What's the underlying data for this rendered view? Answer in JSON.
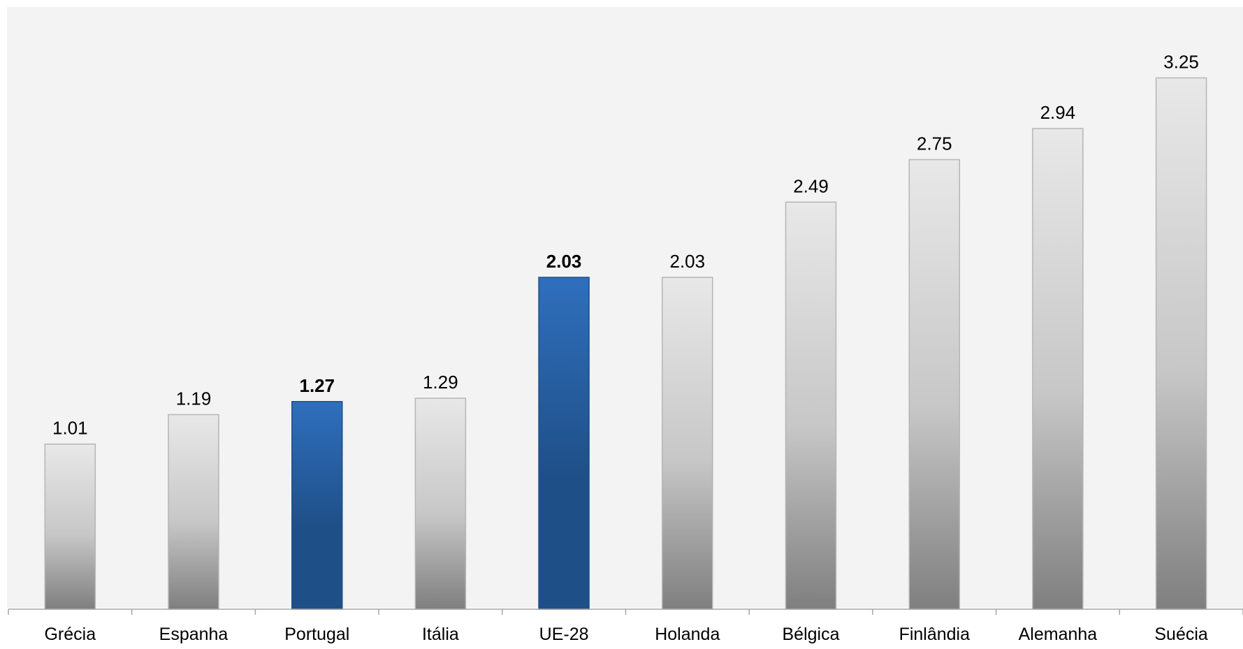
{
  "chart_data": {
    "type": "bar",
    "title": "",
    "xlabel": "",
    "ylabel": "",
    "ylim": [
      0,
      3.5
    ],
    "grid": false,
    "legend": "none",
    "categories": [
      "Grécia",
      "Espanha",
      "Portugal",
      "Itália",
      "UE-28",
      "Holanda",
      "Bélgica",
      "Finlândia",
      "Alemanha",
      "Suécia"
    ],
    "values": [
      1.01,
      1.19,
      1.27,
      1.29,
      2.03,
      2.03,
      2.49,
      2.75,
      2.94,
      3.25
    ],
    "value_labels": [
      "1.01",
      "1.19",
      "1.27",
      "1.29",
      "2.03",
      "2.03",
      "2.49",
      "2.75",
      "2.94",
      "3.25"
    ],
    "highlighted": [
      "Portugal",
      "UE-28"
    ],
    "colors": {
      "plot_background": "#f3f3f3",
      "bar_top": "#e8e8e8",
      "bar_mid": "#c7c7c7",
      "bar_bottom": "#7f7f7f",
      "highlight_top": "#2f6fbd",
      "highlight_bottom": "#1f4f87",
      "axis": "#a6a6a6",
      "text": "#000000"
    }
  }
}
